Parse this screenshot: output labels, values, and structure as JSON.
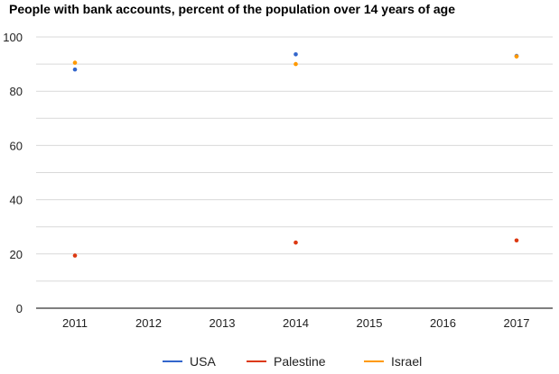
{
  "chart_data": {
    "type": "scatter",
    "title": "People with bank accounts, percent of the population over 14 years of age",
    "xlabel": "",
    "ylabel": "",
    "x_ticks": [
      "2011",
      "2012",
      "2013",
      "2014",
      "2015",
      "2016",
      "2017"
    ],
    "y_ticks": [
      "0",
      "20",
      "40",
      "60",
      "80",
      "100"
    ],
    "ylim": [
      0,
      100
    ],
    "grid": true,
    "legend_position": "bottom",
    "series": [
      {
        "name": "USA",
        "color": "#3366cc",
        "x": [
          2011,
          2014,
          2017
        ],
        "y": [
          88,
          93.6,
          93
        ]
      },
      {
        "name": "Palestine",
        "color": "#dc3912",
        "x": [
          2011,
          2014,
          2017
        ],
        "y": [
          19.4,
          24.2,
          25
        ]
      },
      {
        "name": "Israel",
        "color": "#ff9900",
        "x": [
          2011,
          2014,
          2017
        ],
        "y": [
          90.5,
          90,
          92.8
        ]
      }
    ]
  }
}
